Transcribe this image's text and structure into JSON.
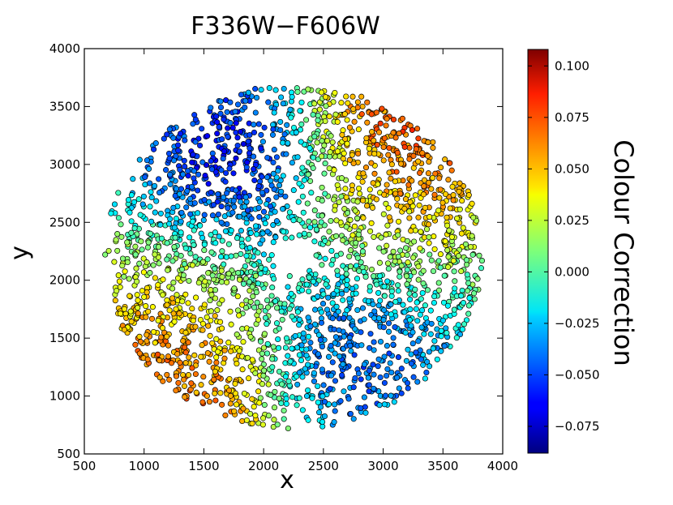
{
  "chart_data": {
    "type": "scatter",
    "title": "F336W−F606W",
    "xlabel": "x",
    "ylabel": "y",
    "xlim": [
      500,
      4000
    ],
    "ylim": [
      500,
      4000
    ],
    "xticks": [
      500,
      1000,
      1500,
      2000,
      2500,
      3000,
      3500,
      4000
    ],
    "yticks": [
      500,
      1000,
      1500,
      2000,
      2500,
      3000,
      3500,
      4000
    ],
    "xtick_labels": [
      "500",
      "1000",
      "1500",
      "2000",
      "2500",
      "3000",
      "3500",
      "4000"
    ],
    "ytick_labels": [
      "500",
      "1000",
      "1500",
      "2000",
      "2500",
      "3000",
      "3500",
      "4000"
    ],
    "colorbar": {
      "label": "Colour Correction",
      "range": [
        -0.088,
        0.108
      ],
      "colormap": "jet",
      "ticks": [
        -0.075,
        -0.05,
        -0.025,
        0.0,
        0.025,
        0.05,
        0.075,
        0.1
      ],
      "tick_labels": [
        "−0.075",
        "−0.050",
        "−0.025",
        "0.000",
        "0.025",
        "0.050",
        "0.075",
        "0.100"
      ]
    },
    "field": {
      "center": [
        2250,
        2200
      ],
      "outer_radius": 1550,
      "inner_hole_radius": 170,
      "n_points": 2600
    },
    "regions": [
      {
        "name": "upper-left cluster",
        "x": 1800,
        "y": 2900,
        "colour_correction": -0.08
      },
      {
        "name": "lower-right cluster",
        "x": 2700,
        "y": 1550,
        "colour_correction": -0.065
      },
      {
        "name": "lower-left rim",
        "x": 1300,
        "y": 1200,
        "colour_correction": 0.085
      },
      {
        "name": "upper-right rim",
        "x": 3150,
        "y": 3250,
        "colour_correction": 0.085
      },
      {
        "name": "right-centre band",
        "x": 2900,
        "y": 2450,
        "colour_correction": 0.04
      },
      {
        "name": "left-centre band",
        "x": 1500,
        "y": 1850,
        "colour_correction": 0.03
      }
    ]
  }
}
